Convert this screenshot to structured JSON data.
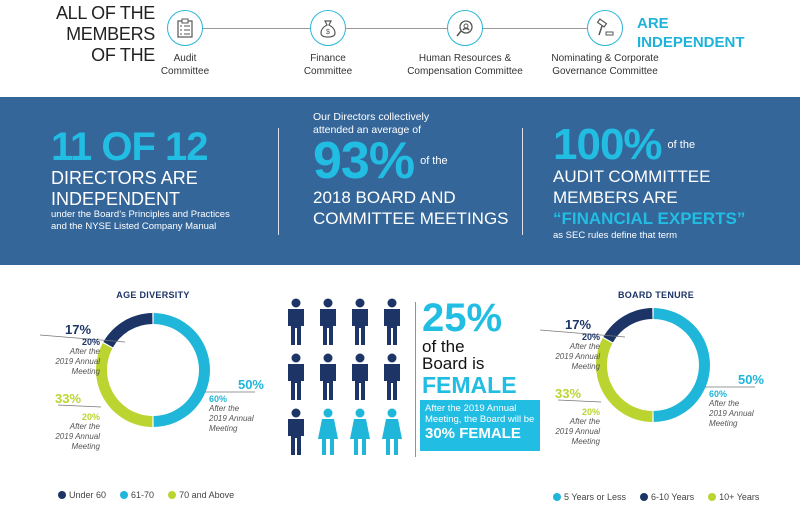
{
  "header": {
    "intro_lines": [
      "ALL OF THE",
      "MEMBERS",
      "OF THE"
    ],
    "conclusion_lines": [
      "ARE",
      "INDEPENDENT"
    ],
    "committees": [
      {
        "icon": "clipboard-icon",
        "lines": [
          "Audit",
          "Committee"
        ]
      },
      {
        "icon": "money-bag-icon",
        "lines": [
          "Finance",
          "Committee"
        ]
      },
      {
        "icon": "person-search-icon",
        "lines": [
          "Human Resources &",
          "Compensation Committee"
        ]
      },
      {
        "icon": "gavel-icon",
        "lines": [
          "Nominating & Corporate",
          "Governance Committee"
        ]
      }
    ]
  },
  "banner": {
    "col1": {
      "headline": "11 OF 12",
      "line1": "DIRECTORS ARE",
      "line2": "INDEPENDENT",
      "note1": "under the Board’s Principles and Practices",
      "note2": "and the NYSE Listed Company Manual"
    },
    "col2": {
      "intro1": "Our Directors collectively",
      "intro2": "attended an average of",
      "headline": "93%",
      "suffix": "of the",
      "line1": "2018 BOARD AND",
      "line2": "COMMITTEE MEETINGS"
    },
    "col3": {
      "headline": "100%",
      "suffix": "of the",
      "line1": "AUDIT COMMITTEE",
      "line2": "MEMBERS ARE",
      "highlight": "“FINANCIAL EXPERTS”",
      "note": "as SEC rules define that term"
    }
  },
  "gender": {
    "men": 9,
    "women": 3,
    "headline": "25%",
    "line1": "of the",
    "line2": "Board is",
    "emph": "FEMALE",
    "box1": "After the 2019 Annual",
    "box2": "Meeting, the Board will be",
    "box3": "30% FEMALE"
  },
  "colors": {
    "navy": "#1c3566",
    "cyan": "#1fb6d9",
    "green": "#bcd430",
    "banner": "#346699"
  },
  "chart_data": [
    {
      "type": "pie",
      "title": "AGE DIVERSITY",
      "categories": [
        "61-70",
        "70 and Above",
        "Under 60"
      ],
      "values": [
        50,
        33,
        17
      ],
      "after_2019": [
        "60%",
        "20%",
        "20%"
      ],
      "after_label": [
        "After the",
        "2019 Annual",
        "Meeting"
      ],
      "labels": [
        "50%",
        "33%",
        "17%"
      ],
      "legend": [
        "Under 60",
        "61-70",
        "70 and Above"
      ]
    },
    {
      "type": "pie",
      "title": "BOARD TENURE",
      "categories": [
        "5 Years or Less",
        "10+ Years",
        "6-10 Years"
      ],
      "values": [
        50,
        33,
        17
      ],
      "after_2019": [
        "60%",
        "20%",
        "20%"
      ],
      "after_label": [
        "After the",
        "2019 Annual",
        "Meeting"
      ],
      "labels": [
        "50%",
        "33%",
        "17%"
      ],
      "legend": [
        "5 Years or Less",
        "6-10 Years",
        "10+ Years"
      ]
    }
  ]
}
